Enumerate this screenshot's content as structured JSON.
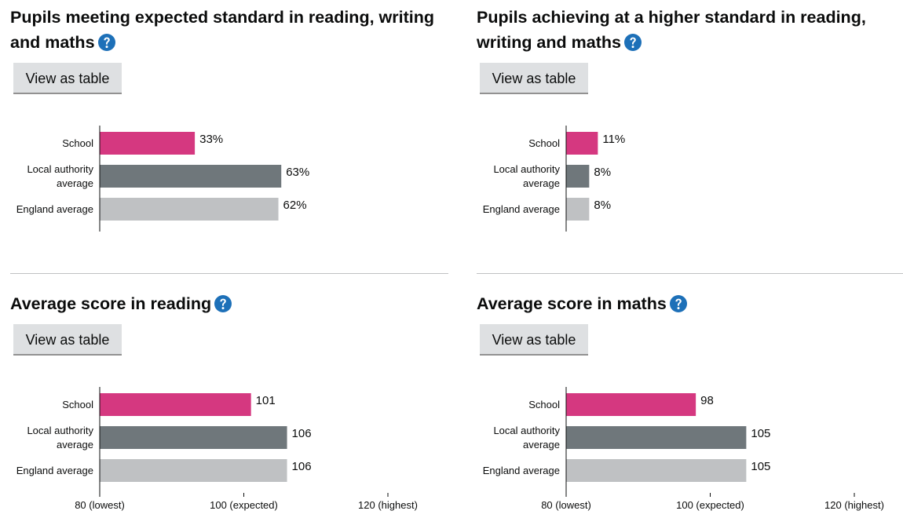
{
  "chart_data": [
    {
      "type": "bar",
      "orientation": "horizontal",
      "title": "Pupils meeting expected standard in reading, writing and maths",
      "button": "View as table",
      "categories": [
        "School",
        "Local authority average",
        "England average"
      ],
      "values": [
        33,
        63,
        62
      ],
      "value_labels": [
        "33%",
        "63%",
        "62%"
      ],
      "colors": [
        "#d53880",
        "#6f777b",
        "#bfc1c3"
      ],
      "xlim": [
        0,
        100
      ]
    },
    {
      "type": "bar",
      "orientation": "horizontal",
      "title": "Pupils achieving at a higher standard in reading, writing and maths",
      "button": "View as table",
      "categories": [
        "School",
        "Local authority average",
        "England average"
      ],
      "values": [
        11,
        8,
        8
      ],
      "value_labels": [
        "11%",
        "8%",
        "8%"
      ],
      "colors": [
        "#d53880",
        "#6f777b",
        "#bfc1c3"
      ],
      "xlim": [
        0,
        100
      ]
    },
    {
      "type": "bar",
      "orientation": "horizontal",
      "title": "Average score in reading",
      "button": "View as table",
      "categories": [
        "School",
        "Local authority average",
        "England average"
      ],
      "values": [
        101,
        106,
        106
      ],
      "colors": [
        "#d53880",
        "#6f777b",
        "#bfc1c3"
      ],
      "xlim": [
        80,
        120
      ],
      "xticks": [
        {
          "value": 80,
          "label": "80 (lowest)"
        },
        {
          "value": 100,
          "label": "100 (expected)"
        },
        {
          "value": 120,
          "label": "120 (highest)"
        }
      ]
    },
    {
      "type": "bar",
      "orientation": "horizontal",
      "title": "Average score in maths",
      "button": "View as table",
      "categories": [
        "School",
        "Local authority average",
        "England average"
      ],
      "values": [
        98,
        105,
        105
      ],
      "colors": [
        "#d53880",
        "#6f777b",
        "#bfc1c3"
      ],
      "xlim": [
        80,
        120
      ],
      "xticks": [
        {
          "value": 80,
          "label": "80 (lowest)"
        },
        {
          "value": 100,
          "label": "100 (expected)"
        },
        {
          "value": 120,
          "label": "120 (highest)"
        }
      ]
    }
  ]
}
